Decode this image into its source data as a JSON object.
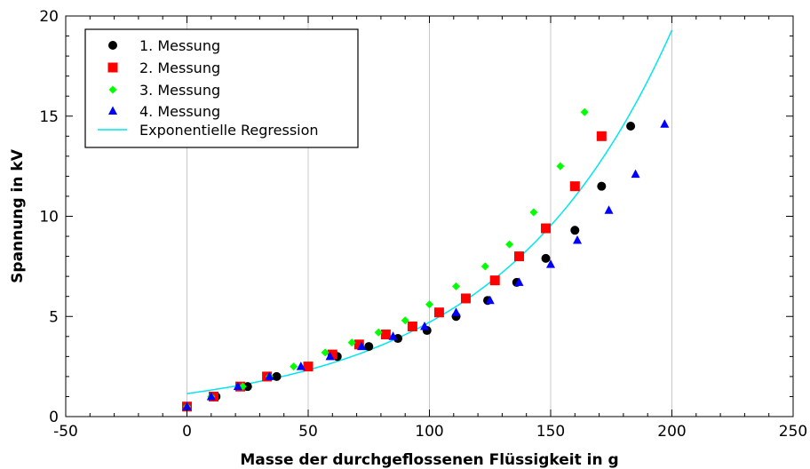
{
  "chart_data": {
    "type": "scatter",
    "xlabel": "Masse der durchgeflossenen Flüssigkeit in g",
    "ylabel": "Spannung in kV",
    "xlim": [
      -50,
      250
    ],
    "ylim": [
      0,
      20
    ],
    "xticks": [
      -50,
      0,
      50,
      100,
      150,
      200,
      250
    ],
    "yticks": [
      0,
      5,
      10,
      15,
      20
    ],
    "xtick_labels": [
      "-50",
      "0",
      "50",
      "100",
      "150",
      "200",
      "250"
    ],
    "ytick_labels": [
      "0",
      "5",
      "10",
      "15",
      "20"
    ],
    "grid": "vertical",
    "legend_position": "top-left",
    "series": [
      {
        "name": "1. Messung",
        "marker": "circle",
        "color": "#000000",
        "points": [
          [
            0,
            0.5
          ],
          [
            12,
            1.0
          ],
          [
            25,
            1.5
          ],
          [
            37,
            2.0
          ],
          [
            50,
            2.5
          ],
          [
            62,
            3.0
          ],
          [
            75,
            3.5
          ],
          [
            87,
            3.9
          ],
          [
            99,
            4.3
          ],
          [
            111,
            5.0
          ],
          [
            124,
            5.8
          ],
          [
            136,
            6.7
          ],
          [
            148,
            7.9
          ],
          [
            160,
            9.3
          ],
          [
            171,
            11.5
          ],
          [
            183,
            14.5
          ]
        ]
      },
      {
        "name": "2. Messung",
        "marker": "square",
        "color": "#ff0000",
        "points": [
          [
            0,
            0.5
          ],
          [
            11,
            1.0
          ],
          [
            22,
            1.5
          ],
          [
            33,
            2.0
          ],
          [
            50,
            2.5
          ],
          [
            60,
            3.1
          ],
          [
            71,
            3.6
          ],
          [
            82,
            4.1
          ],
          [
            93,
            4.5
          ],
          [
            104,
            5.2
          ],
          [
            115,
            5.9
          ],
          [
            127,
            6.8
          ],
          [
            137,
            8.0
          ],
          [
            148,
            9.4
          ],
          [
            160,
            11.5
          ],
          [
            171,
            14.0
          ]
        ]
      },
      {
        "name": "3. Messung",
        "marker": "diamond",
        "color": "#00ff00",
        "points": [
          [
            0,
            0.5
          ],
          [
            10,
            1.0
          ],
          [
            23,
            1.5
          ],
          [
            34,
            2.0
          ],
          [
            44,
            2.5
          ],
          [
            57,
            3.2
          ],
          [
            68,
            3.7
          ],
          [
            79,
            4.2
          ],
          [
            90,
            4.8
          ],
          [
            100,
            5.6
          ],
          [
            111,
            6.5
          ],
          [
            123,
            7.5
          ],
          [
            133,
            8.6
          ],
          [
            143,
            10.2
          ],
          [
            154,
            12.5
          ],
          [
            164,
            15.2
          ]
        ]
      },
      {
        "name": "4. Messung",
        "marker": "triangle",
        "color": "#0000ff",
        "points": [
          [
            0,
            0.5
          ],
          [
            10,
            1.0
          ],
          [
            21,
            1.5
          ],
          [
            34,
            2.0
          ],
          [
            47,
            2.5
          ],
          [
            59,
            3.0
          ],
          [
            72,
            3.5
          ],
          [
            85,
            4.0
          ],
          [
            98,
            4.5
          ],
          [
            111,
            5.2
          ],
          [
            125,
            5.8
          ],
          [
            137,
            6.7
          ],
          [
            150,
            7.6
          ],
          [
            161,
            8.8
          ],
          [
            174,
            10.3
          ],
          [
            185,
            12.1
          ],
          [
            197,
            14.6
          ]
        ]
      }
    ],
    "regression": {
      "name": "Exponentielle Regression",
      "color": "#00e5ee",
      "a": 1.15,
      "b": 0.0141,
      "x_range": [
        0,
        200
      ]
    }
  }
}
